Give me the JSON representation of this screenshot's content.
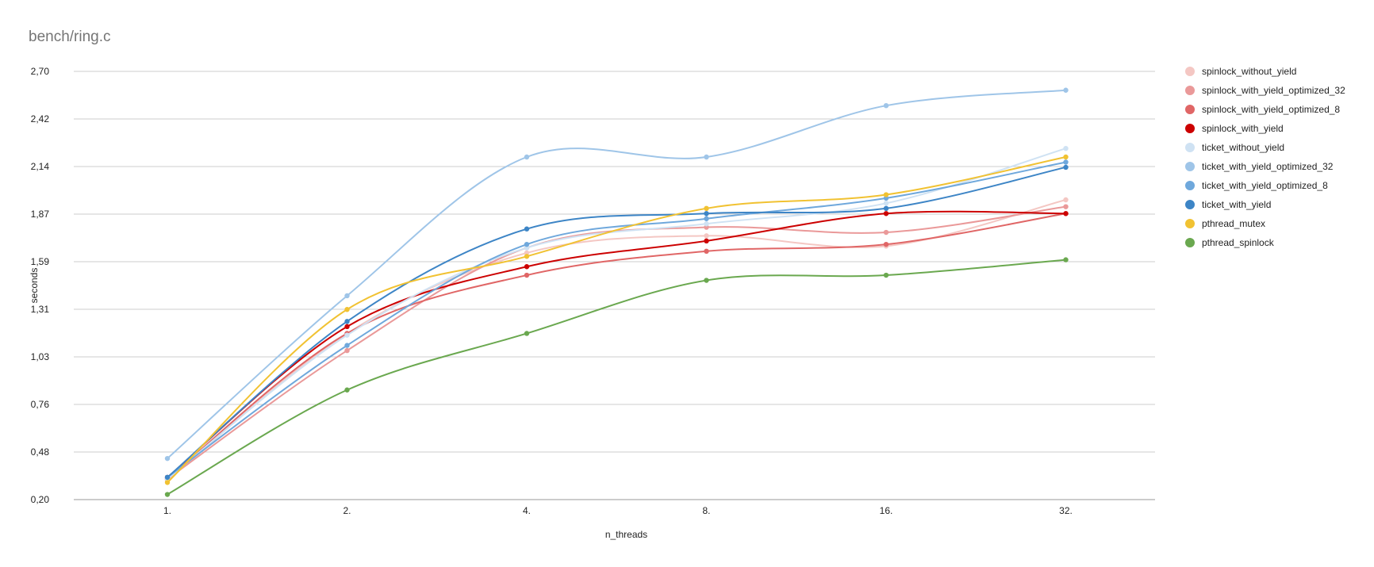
{
  "chart_data": {
    "type": "line",
    "title": "bench/ring.c",
    "xlabel": "n_threads",
    "ylabel": "seconds",
    "categories": [
      "1.",
      "2.",
      "4.",
      "8.",
      "16.",
      "32."
    ],
    "y_ticks": [
      "0,20",
      "0,48",
      "0,76",
      "1,03",
      "1,31",
      "1,59",
      "1,87",
      "2,14",
      "2,42",
      "2,70"
    ],
    "ylim": [
      0.2,
      2.7
    ],
    "grid": true,
    "legend_position": "right",
    "curve": "smooth",
    "series": [
      {
        "name": "spinlock_without_yield",
        "color": "#f4c7c3",
        "values": [
          0.31,
          1.17,
          1.64,
          1.74,
          1.68,
          1.95
        ]
      },
      {
        "name": "spinlock_with_yield_optimized_32",
        "color": "#ea9999",
        "values": [
          0.32,
          1.07,
          1.67,
          1.79,
          1.76,
          1.91
        ]
      },
      {
        "name": "spinlock_with_yield_optimized_8",
        "color": "#e06666",
        "values": [
          0.32,
          1.17,
          1.51,
          1.65,
          1.69,
          1.87
        ]
      },
      {
        "name": "spinlock_with_yield",
        "color": "#cc0000",
        "values": [
          0.33,
          1.21,
          1.56,
          1.71,
          1.87,
          1.87
        ]
      },
      {
        "name": "ticket_without_yield",
        "color": "#cfe2f3",
        "values": [
          0.32,
          1.16,
          1.67,
          1.81,
          1.93,
          2.25
        ]
      },
      {
        "name": "ticket_with_yield_optimized_32",
        "color": "#9fc5e8",
        "values": [
          0.44,
          1.39,
          2.2,
          2.2,
          2.5,
          2.59
        ]
      },
      {
        "name": "ticket_with_yield_optimized_8",
        "color": "#6fa8dc",
        "values": [
          0.33,
          1.1,
          1.69,
          1.84,
          1.96,
          2.17
        ]
      },
      {
        "name": "ticket_with_yield",
        "color": "#3d85c6",
        "values": [
          0.33,
          1.24,
          1.78,
          1.87,
          1.9,
          2.14
        ]
      },
      {
        "name": "pthread_mutex",
        "color": "#f1c232",
        "values": [
          0.3,
          1.31,
          1.62,
          1.9,
          1.98,
          2.2
        ]
      },
      {
        "name": "pthread_spinlock",
        "color": "#6aa84f",
        "values": [
          0.23,
          0.84,
          1.17,
          1.48,
          1.51,
          1.6
        ]
      }
    ]
  }
}
